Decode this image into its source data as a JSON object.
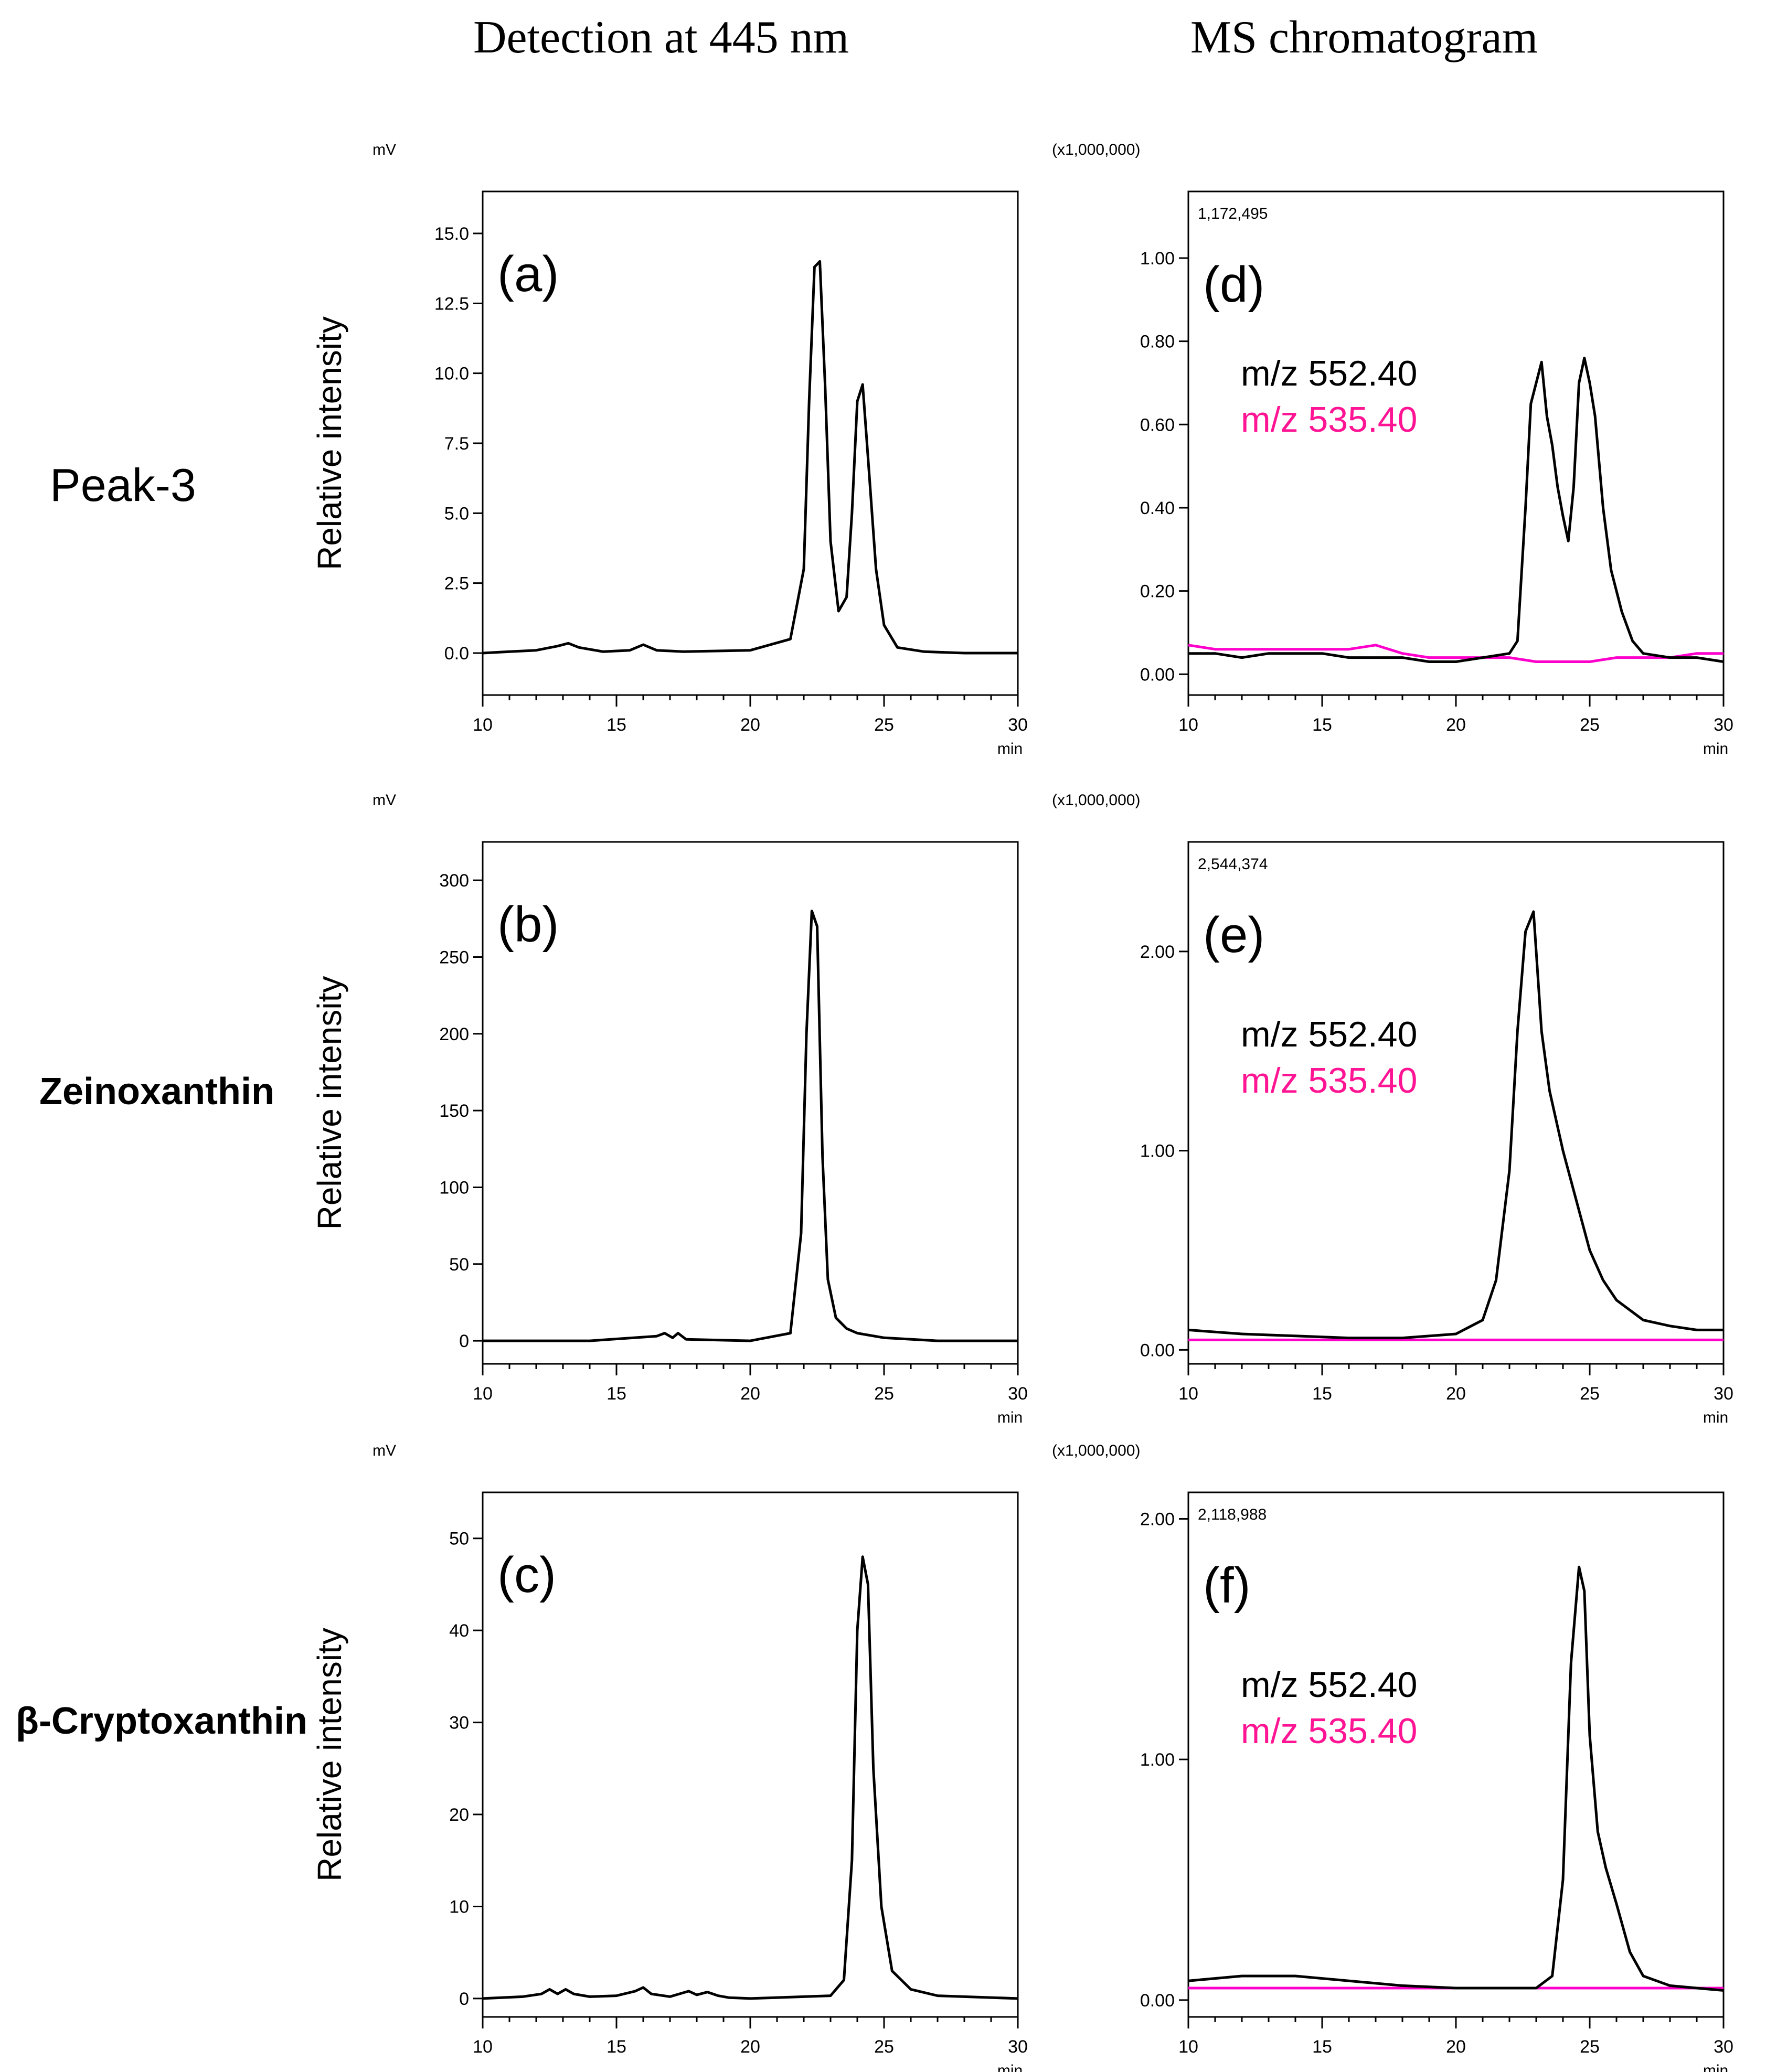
{
  "column_titles": {
    "left": "Detection at 445 nm",
    "right": "MS chromatogram"
  },
  "row_labels": [
    "Peak-3",
    "Zeinoxanthin",
    "β-Cryptoxanthin"
  ],
  "colors": {
    "trace_black": "#000000",
    "trace_magenta": "#ff00cc",
    "label_magenta": "#ff1493",
    "axis": "#000000"
  },
  "chart_data": [
    {
      "id": "a",
      "panel_label": "(a)",
      "type": "line",
      "title": "Detection at 445 nm",
      "xlabel": "min",
      "ylabel": "Relative intensity",
      "unit": "mV",
      "xlim": [
        10,
        30
      ],
      "ylim": [
        -1.5,
        16.5
      ],
      "xticks": [
        10,
        15,
        20,
        25,
        30
      ],
      "yticks": [
        0.0,
        2.5,
        5.0,
        7.5,
        10.0,
        12.5,
        15.0
      ],
      "ytick_labels": [
        "0.0",
        "2.5",
        "5.0",
        "7.5",
        "10.0",
        "12.5",
        "15.0"
      ],
      "series": [
        {
          "name": "445 nm",
          "color": "#000000",
          "x": [
            10,
            11,
            12,
            12.8,
            13.2,
            13.6,
            14.5,
            15.5,
            16,
            16.5,
            17.5,
            20,
            21.5,
            22.0,
            22.2,
            22.4,
            22.6,
            22.8,
            23.0,
            23.3,
            23.6,
            23.8,
            24.0,
            24.2,
            24.4,
            24.7,
            25.0,
            25.5,
            26.5,
            28,
            30
          ],
          "y": [
            0.0,
            0.05,
            0.1,
            0.25,
            0.35,
            0.2,
            0.05,
            0.1,
            0.3,
            0.1,
            0.05,
            0.1,
            0.5,
            3.0,
            9.0,
            13.8,
            14.0,
            9.5,
            4.0,
            1.5,
            2.0,
            5.0,
            9.0,
            9.6,
            7.0,
            3.0,
            1.0,
            0.2,
            0.05,
            0.0,
            0.0
          ]
        }
      ]
    },
    {
      "id": "b",
      "panel_label": "(b)",
      "type": "line",
      "title": "Detection at 445 nm",
      "xlabel": "min",
      "ylabel": "Relative intensity",
      "unit": "mV",
      "xlim": [
        10,
        30
      ],
      "ylim": [
        -15,
        325
      ],
      "xticks": [
        10,
        15,
        20,
        25,
        30
      ],
      "yticks": [
        0,
        50,
        100,
        150,
        200,
        250,
        300
      ],
      "ytick_labels": [
        "0",
        "50",
        "100",
        "150",
        "200",
        "250",
        "300"
      ],
      "series": [
        {
          "name": "445 nm",
          "color": "#000000",
          "x": [
            10,
            14,
            16.5,
            16.8,
            17.1,
            17.3,
            17.6,
            20,
            21.5,
            21.9,
            22.1,
            22.3,
            22.5,
            22.7,
            22.9,
            23.2,
            23.6,
            24.0,
            25.0,
            27,
            30
          ],
          "y": [
            0,
            0,
            3,
            5,
            2,
            5,
            1,
            0,
            5,
            70,
            200,
            280,
            270,
            120,
            40,
            15,
            8,
            5,
            2,
            0,
            0
          ]
        }
      ]
    },
    {
      "id": "c",
      "panel_label": "(c)",
      "type": "line",
      "title": "Detection at 445 nm",
      "xlabel": "min",
      "ylabel": "Relative intensity",
      "unit": "mV",
      "xlim": [
        10,
        30
      ],
      "ylim": [
        -2,
        55
      ],
      "xticks": [
        10,
        15,
        20,
        25,
        30
      ],
      "yticks": [
        0,
        10,
        20,
        30,
        40,
        50
      ],
      "ytick_labels": [
        "0",
        "10",
        "20",
        "30",
        "40",
        "50"
      ],
      "series": [
        {
          "name": "445 nm",
          "color": "#000000",
          "x": [
            10,
            11.5,
            12.2,
            12.5,
            12.8,
            13.1,
            13.4,
            14.0,
            15.0,
            15.7,
            16.0,
            16.3,
            17.0,
            17.7,
            18.0,
            18.4,
            18.8,
            19.2,
            20,
            23,
            23.5,
            23.8,
            24.0,
            24.2,
            24.4,
            24.6,
            24.9,
            25.3,
            26,
            27,
            30
          ],
          "y": [
            0,
            0.2,
            0.5,
            1.0,
            0.5,
            1.0,
            0.5,
            0.2,
            0.3,
            0.8,
            1.2,
            0.5,
            0.2,
            0.8,
            0.4,
            0.7,
            0.3,
            0.1,
            0,
            0.3,
            2,
            15,
            40,
            48,
            45,
            25,
            10,
            3,
            1,
            0.3,
            0
          ]
        }
      ]
    },
    {
      "id": "d",
      "panel_label": "(d)",
      "type": "line",
      "title": "MS chromatogram",
      "xlabel": "min",
      "ylabel": "",
      "unit": "(x1,000,000)",
      "max_annotation": "1,172,495",
      "xlim": [
        10,
        30
      ],
      "ylim": [
        -0.05,
        1.16
      ],
      "xticks": [
        10,
        15,
        20,
        25,
        30
      ],
      "yticks": [
        0.0,
        0.2,
        0.4,
        0.6,
        0.8,
        1.0
      ],
      "ytick_labels": [
        "0.00",
        "0.20",
        "0.40",
        "0.60",
        "0.80",
        "1.00"
      ],
      "legend": [
        "m/z 552.40",
        "m/z 535.40"
      ],
      "series": [
        {
          "name": "m/z 552.40",
          "color": "#000000",
          "x": [
            10,
            11,
            12,
            13,
            14,
            15,
            16,
            17,
            18,
            19,
            20,
            21,
            22,
            22.3,
            22.6,
            22.8,
            23.0,
            23.2,
            23.4,
            23.6,
            23.8,
            24.0,
            24.2,
            24.4,
            24.6,
            24.8,
            25.0,
            25.2,
            25.5,
            25.8,
            26.2,
            26.6,
            27,
            28,
            29,
            30
          ],
          "y": [
            0.05,
            0.05,
            0.04,
            0.05,
            0.05,
            0.05,
            0.04,
            0.04,
            0.04,
            0.03,
            0.03,
            0.04,
            0.05,
            0.08,
            0.4,
            0.65,
            0.7,
            0.75,
            0.62,
            0.55,
            0.45,
            0.38,
            0.32,
            0.45,
            0.7,
            0.76,
            0.7,
            0.62,
            0.4,
            0.25,
            0.15,
            0.08,
            0.05,
            0.04,
            0.04,
            0.03
          ]
        },
        {
          "name": "m/z 535.40",
          "color": "#ff00cc",
          "x": [
            10,
            11,
            12,
            13,
            14,
            15,
            16,
            17,
            18,
            19,
            20,
            21,
            22,
            23,
            24,
            25,
            26,
            27,
            28,
            29,
            30
          ],
          "y": [
            0.07,
            0.06,
            0.06,
            0.06,
            0.06,
            0.06,
            0.06,
            0.07,
            0.05,
            0.04,
            0.04,
            0.04,
            0.04,
            0.03,
            0.03,
            0.03,
            0.04,
            0.04,
            0.04,
            0.05,
            0.05
          ]
        }
      ]
    },
    {
      "id": "e",
      "panel_label": "(e)",
      "type": "line",
      "title": "MS chromatogram",
      "xlabel": "min",
      "ylabel": "",
      "unit": "(x1,000,000)",
      "max_annotation": "2,544,374",
      "xlim": [
        10,
        30
      ],
      "ylim": [
        -0.07,
        2.55
      ],
      "xticks": [
        10,
        15,
        20,
        25,
        30
      ],
      "yticks": [
        0.0,
        1.0,
        2.0
      ],
      "ytick_labels": [
        "0.00",
        "1.00",
        "2.00"
      ],
      "legend": [
        "m/z 552.40",
        "m/z 535.40"
      ],
      "series": [
        {
          "name": "m/z 552.40",
          "color": "#000000",
          "x": [
            10,
            12,
            14,
            16,
            18,
            20,
            21,
            21.5,
            22.0,
            22.3,
            22.6,
            22.9,
            23.2,
            23.5,
            24.0,
            24.5,
            25.0,
            25.5,
            26,
            27,
            28,
            29,
            30
          ],
          "y": [
            0.1,
            0.08,
            0.07,
            0.06,
            0.06,
            0.08,
            0.15,
            0.35,
            0.9,
            1.6,
            2.1,
            2.2,
            1.6,
            1.3,
            1.0,
            0.75,
            0.5,
            0.35,
            0.25,
            0.15,
            0.12,
            0.1,
            0.1
          ]
        },
        {
          "name": "m/z 535.40",
          "color": "#ff00cc",
          "x": [
            10,
            12,
            14,
            16,
            18,
            20,
            22,
            24,
            26,
            28,
            30
          ],
          "y": [
            0.05,
            0.05,
            0.05,
            0.05,
            0.05,
            0.05,
            0.05,
            0.05,
            0.05,
            0.05,
            0.05
          ]
        }
      ]
    },
    {
      "id": "f",
      "panel_label": "(f)",
      "type": "line",
      "title": "MS chromatogram",
      "xlabel": "min",
      "ylabel": "",
      "unit": "(x1,000,000)",
      "max_annotation": "2,118,988",
      "xlim": [
        10,
        30
      ],
      "ylim": [
        -0.07,
        2.11
      ],
      "xticks": [
        10,
        15,
        20,
        25,
        30
      ],
      "yticks": [
        0.0,
        1.0,
        2.0
      ],
      "ytick_labels": [
        "0.00",
        "1.00",
        "2.00"
      ],
      "legend": [
        "m/z 552.40",
        "m/z 535.40"
      ],
      "series": [
        {
          "name": "m/z 552.40",
          "color": "#000000",
          "x": [
            10,
            12,
            14,
            16,
            18,
            20,
            22,
            23,
            23.6,
            24.0,
            24.3,
            24.6,
            24.8,
            25.0,
            25.3,
            25.6,
            26.0,
            26.5,
            27,
            28,
            29,
            30
          ],
          "y": [
            0.08,
            0.1,
            0.1,
            0.08,
            0.06,
            0.05,
            0.05,
            0.05,
            0.1,
            0.5,
            1.4,
            1.8,
            1.7,
            1.1,
            0.7,
            0.55,
            0.4,
            0.2,
            0.1,
            0.06,
            0.05,
            0.04
          ]
        },
        {
          "name": "m/z 535.40",
          "color": "#ff00cc",
          "x": [
            10,
            12,
            14,
            16,
            18,
            20,
            22,
            24,
            26,
            28,
            30
          ],
          "y": [
            0.05,
            0.05,
            0.05,
            0.05,
            0.05,
            0.05,
            0.05,
            0.05,
            0.05,
            0.05,
            0.05
          ]
        }
      ]
    }
  ]
}
